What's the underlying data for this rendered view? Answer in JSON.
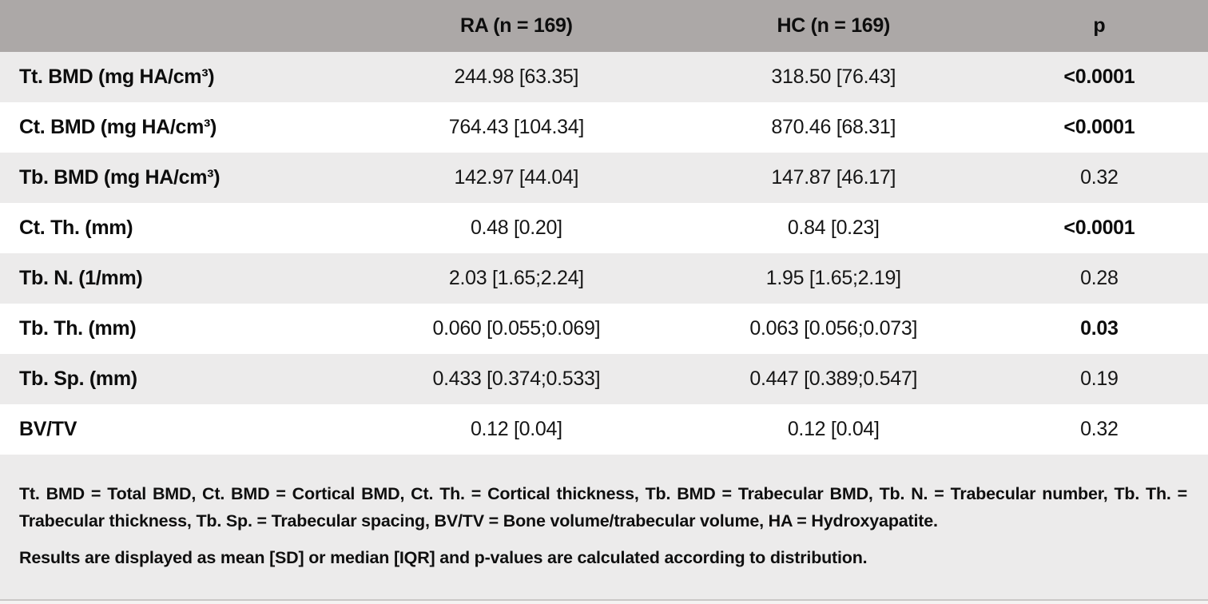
{
  "table": {
    "header": {
      "parameter": "",
      "ra": "RA (n = 169)",
      "hc": "HC (n = 169)",
      "p": "p"
    },
    "rows": [
      {
        "label": "Tt. BMD (mg HA/cm³)",
        "ra": "244.98 [63.35]",
        "hc": "318.50 [76.43]",
        "p": "<0.0001",
        "p_bold": true
      },
      {
        "label": "Ct. BMD (mg HA/cm³)",
        "ra": "764.43 [104.34]",
        "hc": "870.46 [68.31]",
        "p": "<0.0001",
        "p_bold": true
      },
      {
        "label": "Tb. BMD (mg HA/cm³)",
        "ra": "142.97 [44.04]",
        "hc": "147.87 [46.17]",
        "p": "0.32",
        "p_bold": false
      },
      {
        "label": "Ct. Th. (mm)",
        "ra": "0.48 [0.20]",
        "hc": "0.84 [0.23]",
        "p": "<0.0001",
        "p_bold": true
      },
      {
        "label": "Tb. N. (1/mm)",
        "ra": "2.03 [1.65;2.24]",
        "hc": "1.95 [1.65;2.19]",
        "p": "0.28",
        "p_bold": false
      },
      {
        "label": "Tb. Th. (mm)",
        "ra": "0.060 [0.055;0.069]",
        "hc": "0.063 [0.056;0.073]",
        "p": "0.03",
        "p_bold": true
      },
      {
        "label": "Tb. Sp. (mm)",
        "ra": "0.433 [0.374;0.533]",
        "hc": "0.447 [0.389;0.547]",
        "p": "0.19",
        "p_bold": false
      },
      {
        "label": "BV/TV",
        "ra": "0.12 [0.04]",
        "hc": "0.12 [0.04]",
        "p": "0.32",
        "p_bold": false
      }
    ]
  },
  "footnotes": {
    "abbreviations": "Tt. BMD = Total BMD, Ct. BMD = Cortical BMD, Ct. Th. = Cortical thickness, Tb. BMD = Trabecular BMD, Tb. N. = Trabecular number, Tb. Th. = Trabecular thickness, Tb. Sp. = Trabecular spacing, BV/TV = Bone volume/trabecular volume, HA = Hydroxyapatite.",
    "results_note": "Results are displayed as mean [SD] or median [IQR] and p-values are calculated according to distribution."
  },
  "colors": {
    "header_bg": "#aca8a7",
    "row_stripe_bg": "#ecebeb",
    "row_bg": "#ffffff",
    "footer_bg": "#ecebeb",
    "text": "#111111",
    "bottom_border": "#c9c7c6"
  }
}
